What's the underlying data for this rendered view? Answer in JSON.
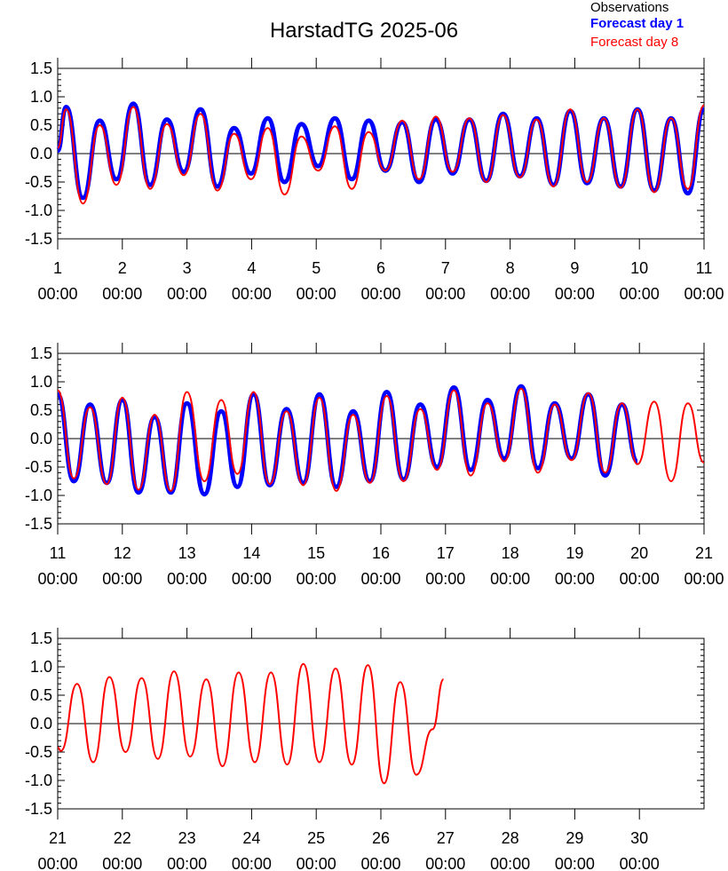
{
  "title": "HarstadTG 2025-06",
  "legend": [
    {
      "label": "Observations",
      "color": "#000000",
      "bold": false
    },
    {
      "label": "Forecast day 1",
      "color": "#0000ff",
      "bold": true
    },
    {
      "label": "Forecast day 8",
      "color": "#ff0000",
      "bold": false
    }
  ],
  "chart_data": [
    {
      "type": "line",
      "panel": "June 1 - June 11",
      "xlim": [
        1,
        11
      ],
      "ylim": [
        -1.5,
        1.5
      ],
      "yticks": [
        "1.5",
        "1.0",
        "0.5",
        "0.0",
        "-0.5",
        "-1.0",
        "-1.5"
      ],
      "xticks": [
        {
          "day": "1",
          "time": "00:00"
        },
        {
          "day": "2",
          "time": "00:00"
        },
        {
          "day": "3",
          "time": "00:00"
        },
        {
          "day": "4",
          "time": "00:00"
        },
        {
          "day": "5",
          "time": "00:00"
        },
        {
          "day": "6",
          "time": "00:00"
        },
        {
          "day": "7",
          "time": "00:00"
        },
        {
          "day": "8",
          "time": "00:00"
        },
        {
          "day": "9",
          "time": "00:00"
        },
        {
          "day": "10",
          "time": "00:00"
        },
        {
          "day": "11",
          "time": "00:00"
        }
      ],
      "series": [
        {
          "name": "Forecast day 1",
          "color": "#0000ff",
          "x": [
            1.0,
            1.13,
            1.39,
            1.65,
            1.91,
            2.17,
            2.43,
            2.69,
            2.95,
            3.21,
            3.47,
            3.73,
            3.99,
            4.25,
            4.51,
            4.77,
            5.03,
            5.29,
            5.55,
            5.81,
            6.07,
            6.33,
            6.59,
            6.85,
            7.11,
            7.37,
            7.63,
            7.89,
            8.15,
            8.41,
            8.67,
            8.93,
            9.19,
            9.45,
            9.71,
            9.97,
            10.23,
            10.49,
            10.75,
            11.0
          ],
          "y": [
            0.05,
            0.82,
            -0.78,
            0.58,
            -0.45,
            0.88,
            -0.55,
            0.6,
            -0.32,
            0.78,
            -0.58,
            0.45,
            -0.35,
            0.62,
            -0.5,
            0.52,
            -0.22,
            0.62,
            -0.45,
            0.58,
            -0.3,
            0.55,
            -0.5,
            0.6,
            -0.35,
            0.6,
            -0.48,
            0.7,
            -0.4,
            0.62,
            -0.55,
            0.75,
            -0.52,
            0.62,
            -0.58,
            0.78,
            -0.65,
            0.62,
            -0.7,
            0.78
          ]
        },
        {
          "name": "Forecast day 8",
          "color": "#ff0000",
          "x": [
            1.0,
            1.13,
            1.39,
            1.65,
            1.91,
            2.17,
            2.43,
            2.69,
            2.95,
            3.21,
            3.47,
            3.73,
            3.99,
            4.25,
            4.51,
            4.77,
            5.03,
            5.29,
            5.55,
            5.81,
            6.07,
            6.33,
            6.59,
            6.85,
            7.11,
            7.37,
            7.63,
            7.89,
            8.15,
            8.41,
            8.67,
            8.93,
            9.19,
            9.45,
            9.71,
            9.97,
            10.23,
            10.49,
            10.75,
            11.0
          ],
          "y": [
            0.1,
            0.78,
            -0.88,
            0.5,
            -0.55,
            0.82,
            -0.62,
            0.52,
            -0.38,
            0.7,
            -0.65,
            0.35,
            -0.45,
            0.45,
            -0.72,
            0.3,
            -0.3,
            0.48,
            -0.62,
            0.38,
            -0.3,
            0.58,
            -0.45,
            0.65,
            -0.32,
            0.62,
            -0.5,
            0.68,
            -0.42,
            0.6,
            -0.58,
            0.78,
            -0.5,
            0.62,
            -0.6,
            0.78,
            -0.68,
            0.62,
            -0.62,
            0.85
          ]
        }
      ]
    },
    {
      "type": "line",
      "panel": "June 11 - June 21",
      "xlim": [
        11,
        21
      ],
      "ylim": [
        -1.5,
        1.5
      ],
      "yticks": [
        "1.5",
        "1.0",
        "0.5",
        "0.0",
        "-0.5",
        "-1.0",
        "-1.5"
      ],
      "xticks": [
        {
          "day": "11",
          "time": "00:00"
        },
        {
          "day": "12",
          "time": "00:00"
        },
        {
          "day": "13",
          "time": "00:00"
        },
        {
          "day": "14",
          "time": "00:00"
        },
        {
          "day": "15",
          "time": "00:00"
        },
        {
          "day": "16",
          "time": "00:00"
        },
        {
          "day": "17",
          "time": "00:00"
        },
        {
          "day": "18",
          "time": "00:00"
        },
        {
          "day": "19",
          "time": "00:00"
        },
        {
          "day": "20",
          "time": "00:00"
        },
        {
          "day": "21",
          "time": "00:00"
        }
      ],
      "series": [
        {
          "name": "Forecast day 1",
          "color": "#0000ff",
          "x": [
            11.0,
            11.25,
            11.5,
            11.76,
            12.0,
            12.25,
            12.5,
            12.75,
            13.0,
            13.27,
            13.53,
            13.78,
            14.03,
            14.28,
            14.54,
            14.8,
            15.05,
            15.31,
            15.57,
            15.83,
            16.09,
            16.35,
            16.61,
            16.87,
            17.13,
            17.39,
            17.65,
            17.91,
            18.17,
            18.43,
            18.69,
            18.95,
            19.21,
            19.47,
            19.73,
            19.97
          ],
          "y": [
            0.78,
            -0.75,
            0.6,
            -0.78,
            0.68,
            -0.95,
            0.38,
            -0.95,
            0.62,
            -0.98,
            0.48,
            -0.85,
            0.78,
            -0.82,
            0.52,
            -0.78,
            0.78,
            -0.85,
            0.48,
            -0.75,
            0.82,
            -0.72,
            0.6,
            -0.5,
            0.9,
            -0.55,
            0.68,
            -0.35,
            0.92,
            -0.52,
            0.62,
            -0.35,
            0.78,
            -0.65,
            0.6,
            -0.4
          ]
        },
        {
          "name": "Forecast day 8",
          "color": "#ff0000",
          "x": [
            11.0,
            11.25,
            11.5,
            11.76,
            12.0,
            12.25,
            12.5,
            12.75,
            13.0,
            13.27,
            13.53,
            13.78,
            14.03,
            14.28,
            14.54,
            14.8,
            15.05,
            15.31,
            15.57,
            15.83,
            16.09,
            16.35,
            16.61,
            16.87,
            17.13,
            17.39,
            17.65,
            17.91,
            18.17,
            18.43,
            18.69,
            18.95,
            19.21,
            19.47,
            19.73,
            19.97,
            20.23,
            20.49,
            20.75,
            21.0
          ],
          "y": [
            0.85,
            -0.7,
            0.55,
            -0.8,
            0.72,
            -0.9,
            0.42,
            -0.92,
            0.82,
            -0.75,
            0.68,
            -0.62,
            0.82,
            -0.8,
            0.48,
            -0.82,
            0.72,
            -0.92,
            0.42,
            -0.78,
            0.75,
            -0.75,
            0.52,
            -0.55,
            0.85,
            -0.65,
            0.62,
            -0.4,
            0.88,
            -0.6,
            0.6,
            -0.38,
            0.8,
            -0.6,
            0.62,
            -0.45,
            0.65,
            -0.75,
            0.62,
            -0.42
          ]
        }
      ]
    },
    {
      "type": "line",
      "panel": "June 21 - June 30",
      "xlim": [
        21,
        31
      ],
      "ylim": [
        -1.5,
        1.5
      ],
      "yticks": [
        "1.5",
        "1.0",
        "0.5",
        "0.0",
        "-0.5",
        "-1.0",
        "-1.5"
      ],
      "xticks": [
        {
          "day": "21",
          "time": "00:00"
        },
        {
          "day": "22",
          "time": "00:00"
        },
        {
          "day": "23",
          "time": "00:00"
        },
        {
          "day": "24",
          "time": "00:00"
        },
        {
          "day": "25",
          "time": "00:00"
        },
        {
          "day": "26",
          "time": "00:00"
        },
        {
          "day": "27",
          "time": "00:00"
        },
        {
          "day": "28",
          "time": "00:00"
        },
        {
          "day": "29",
          "time": "00:00"
        },
        {
          "day": "30",
          "time": "00:00"
        }
      ],
      "series": [
        {
          "name": "Forecast day 8",
          "color": "#ff0000",
          "x": [
            21.0,
            21.05,
            21.3,
            21.55,
            21.8,
            22.05,
            22.3,
            22.55,
            22.8,
            23.05,
            23.3,
            23.55,
            23.8,
            24.05,
            24.3,
            24.55,
            24.8,
            25.05,
            25.3,
            25.55,
            25.8,
            26.05,
            26.3,
            26.55,
            26.8,
            26.97
          ],
          "y": [
            -0.42,
            -0.48,
            0.7,
            -0.68,
            0.82,
            -0.5,
            0.8,
            -0.62,
            0.92,
            -0.58,
            0.78,
            -0.75,
            0.9,
            -0.68,
            0.9,
            -0.72,
            1.05,
            -0.68,
            0.97,
            -0.72,
            1.03,
            -1.05,
            0.73,
            -0.9,
            -0.1,
            0.78
          ]
        }
      ]
    }
  ]
}
